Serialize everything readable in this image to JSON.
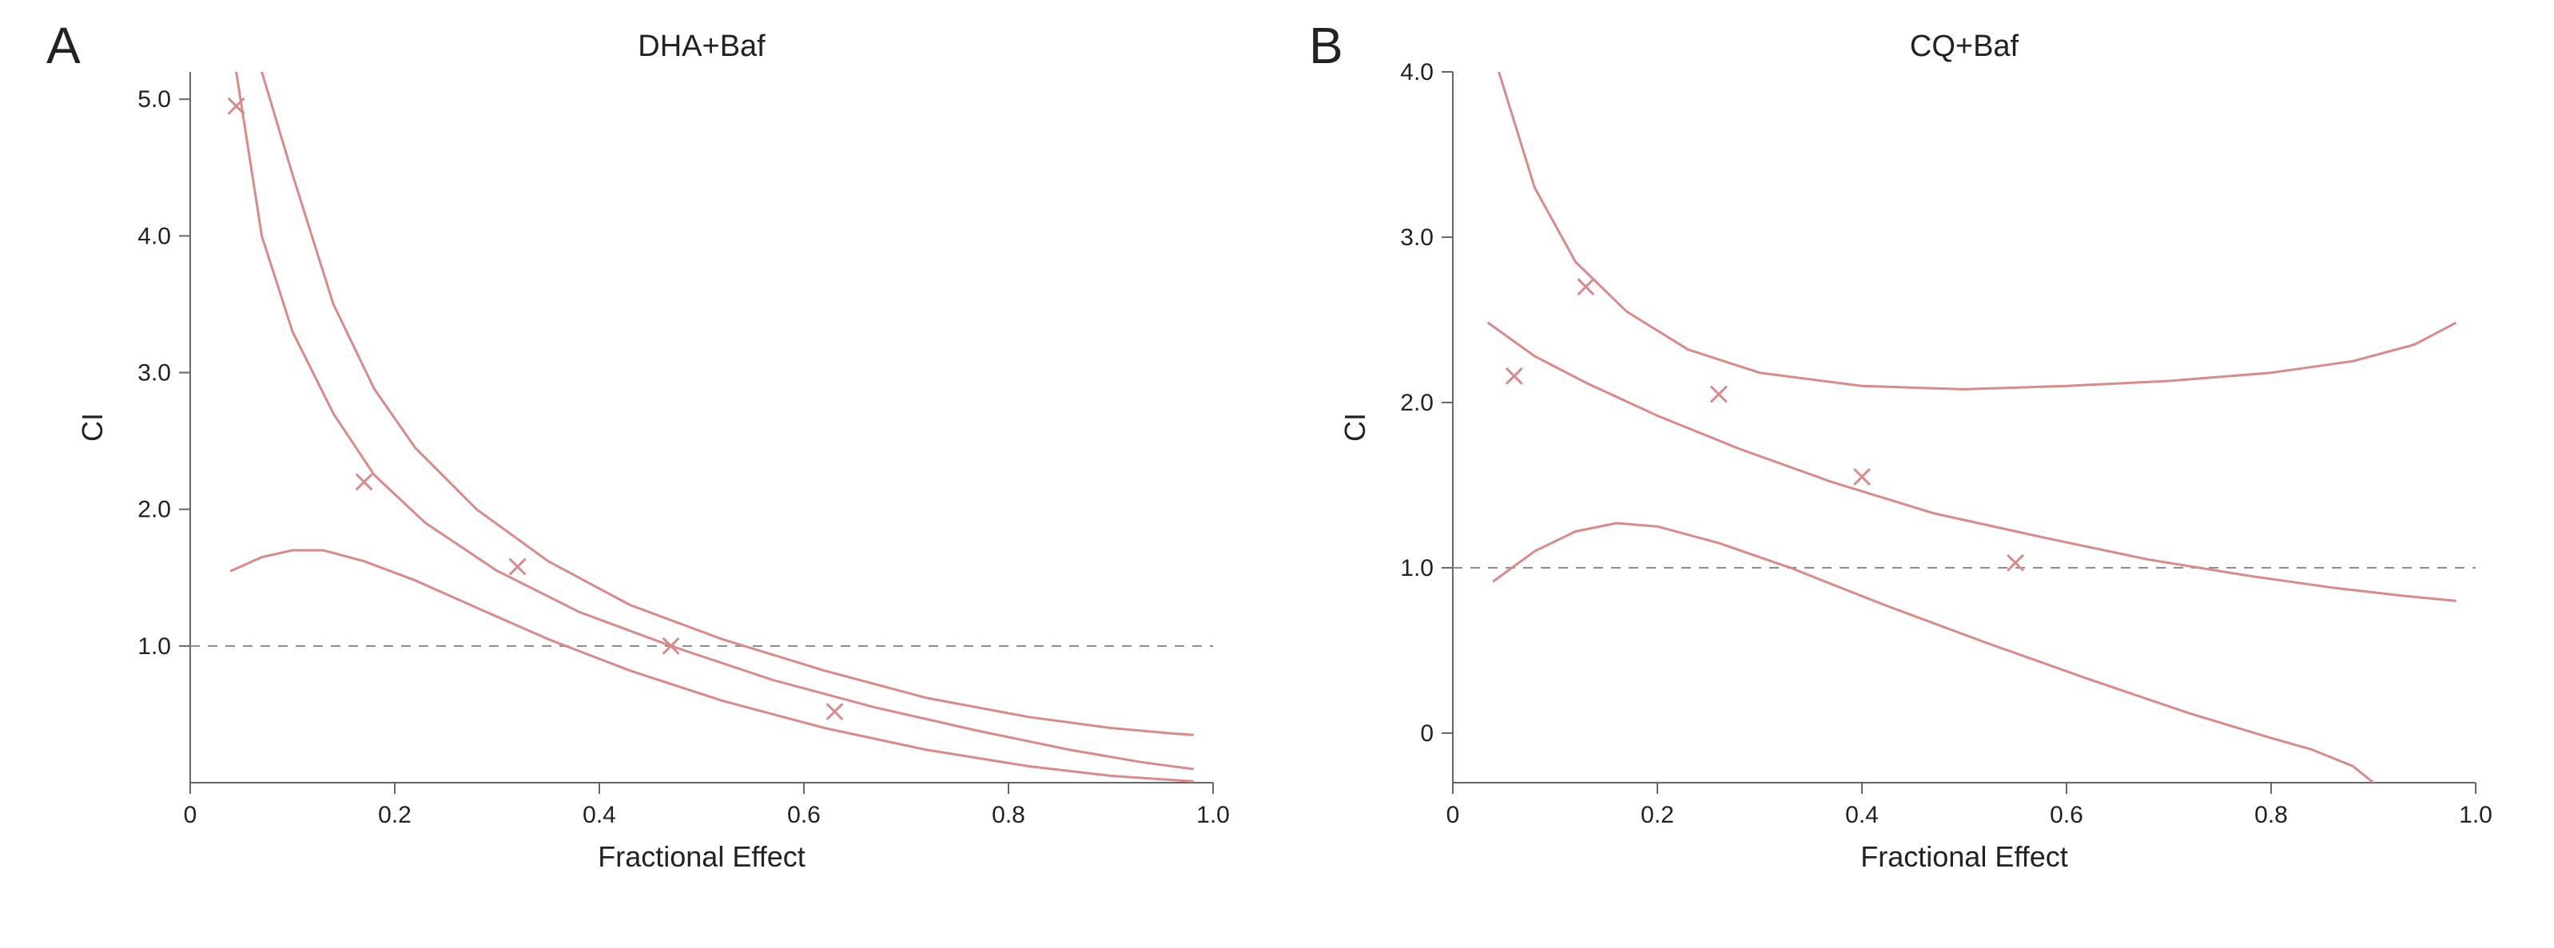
{
  "figure": {
    "layout": "two-panels-side-by-side",
    "aspect_per_panel": "1.35:1",
    "background_color": "#ffffff",
    "panel_letter_fontsize": 64,
    "panel_letter_color": "#222222",
    "title_fontsize": 38,
    "axis_label_fontsize": 36,
    "tick_label_fontsize": 30,
    "axis_color": "#666666",
    "tick_color": "#666666",
    "reference_line_color": "#888888",
    "reference_line_dash": "12,10",
    "curve_color": "#d98a8a",
    "curve_width": 3,
    "marker_style": "x",
    "marker_color": "#d98a8a",
    "marker_size": 18,
    "marker_stroke_width": 3
  },
  "panels": {
    "A": {
      "letter": "A",
      "title": "DHA+Baf",
      "xlabel": "Fractional Effect",
      "ylabel": "CI",
      "xlim": [
        0,
        1.0
      ],
      "ylim": [
        0,
        5.2
      ],
      "xticks": [
        0,
        0.2,
        0.4,
        0.6,
        0.8,
        1.0
      ],
      "yticks": [
        1.0,
        2.0,
        3.0,
        4.0,
        5.0
      ],
      "reference_y": 1.0,
      "points": [
        {
          "x": 0.045,
          "y": 4.95
        },
        {
          "x": 0.17,
          "y": 2.2
        },
        {
          "x": 0.32,
          "y": 1.58
        },
        {
          "x": 0.47,
          "y": 1.0
        },
        {
          "x": 0.63,
          "y": 0.52
        }
      ],
      "curves": {
        "upper": [
          {
            "x": 0.07,
            "y": 5.2
          },
          {
            "x": 0.1,
            "y": 4.45
          },
          {
            "x": 0.14,
            "y": 3.5
          },
          {
            "x": 0.18,
            "y": 2.88
          },
          {
            "x": 0.22,
            "y": 2.45
          },
          {
            "x": 0.28,
            "y": 2.0
          },
          {
            "x": 0.35,
            "y": 1.62
          },
          {
            "x": 0.43,
            "y": 1.3
          },
          {
            "x": 0.52,
            "y": 1.05
          },
          {
            "x": 0.62,
            "y": 0.82
          },
          {
            "x": 0.72,
            "y": 0.62
          },
          {
            "x": 0.82,
            "y": 0.48
          },
          {
            "x": 0.9,
            "y": 0.4
          },
          {
            "x": 0.96,
            "y": 0.36
          },
          {
            "x": 0.98,
            "y": 0.35
          }
        ],
        "middle": [
          {
            "x": 0.045,
            "y": 5.2
          },
          {
            "x": 0.07,
            "y": 4.0
          },
          {
            "x": 0.1,
            "y": 3.3
          },
          {
            "x": 0.14,
            "y": 2.7
          },
          {
            "x": 0.18,
            "y": 2.25
          },
          {
            "x": 0.23,
            "y": 1.9
          },
          {
            "x": 0.3,
            "y": 1.55
          },
          {
            "x": 0.38,
            "y": 1.25
          },
          {
            "x": 0.47,
            "y": 1.0
          },
          {
            "x": 0.57,
            "y": 0.75
          },
          {
            "x": 0.67,
            "y": 0.55
          },
          {
            "x": 0.77,
            "y": 0.38
          },
          {
            "x": 0.86,
            "y": 0.24
          },
          {
            "x": 0.93,
            "y": 0.15
          },
          {
            "x": 0.98,
            "y": 0.1
          }
        ],
        "lower": [
          {
            "x": 0.04,
            "y": 1.55
          },
          {
            "x": 0.07,
            "y": 1.65
          },
          {
            "x": 0.1,
            "y": 1.7
          },
          {
            "x": 0.13,
            "y": 1.7
          },
          {
            "x": 0.17,
            "y": 1.62
          },
          {
            "x": 0.22,
            "y": 1.48
          },
          {
            "x": 0.28,
            "y": 1.28
          },
          {
            "x": 0.35,
            "y": 1.05
          },
          {
            "x": 0.43,
            "y": 0.82
          },
          {
            "x": 0.52,
            "y": 0.6
          },
          {
            "x": 0.62,
            "y": 0.4
          },
          {
            "x": 0.72,
            "y": 0.24
          },
          {
            "x": 0.82,
            "y": 0.12
          },
          {
            "x": 0.9,
            "y": 0.05
          },
          {
            "x": 0.96,
            "y": 0.02
          },
          {
            "x": 0.98,
            "y": 0.01
          }
        ]
      }
    },
    "B": {
      "letter": "B",
      "title": "CQ+Baf",
      "xlabel": "Fractional Effect",
      "ylabel": "CI",
      "xlim": [
        0,
        1.0
      ],
      "ylim": [
        -0.3,
        4.0
      ],
      "xticks": [
        0,
        0.2,
        0.4,
        0.6,
        0.8,
        1.0
      ],
      "yticks": [
        0,
        1.0,
        2.0,
        3.0,
        4.0
      ],
      "reference_y": 1.0,
      "points": [
        {
          "x": 0.06,
          "y": 2.16
        },
        {
          "x": 0.13,
          "y": 2.7
        },
        {
          "x": 0.26,
          "y": 2.05
        },
        {
          "x": 0.4,
          "y": 1.55
        },
        {
          "x": 0.55,
          "y": 1.03
        }
      ],
      "curves": {
        "upper": [
          {
            "x": 0.045,
            "y": 4.0
          },
          {
            "x": 0.08,
            "y": 3.3
          },
          {
            "x": 0.12,
            "y": 2.85
          },
          {
            "x": 0.17,
            "y": 2.55
          },
          {
            "x": 0.23,
            "y": 2.32
          },
          {
            "x": 0.3,
            "y": 2.18
          },
          {
            "x": 0.4,
            "y": 2.1
          },
          {
            "x": 0.5,
            "y": 2.08
          },
          {
            "x": 0.6,
            "y": 2.1
          },
          {
            "x": 0.7,
            "y": 2.13
          },
          {
            "x": 0.8,
            "y": 2.18
          },
          {
            "x": 0.88,
            "y": 2.25
          },
          {
            "x": 0.94,
            "y": 2.35
          },
          {
            "x": 0.98,
            "y": 2.48
          }
        ],
        "middle": [
          {
            "x": 0.035,
            "y": 2.48
          },
          {
            "x": 0.08,
            "y": 2.28
          },
          {
            "x": 0.13,
            "y": 2.12
          },
          {
            "x": 0.2,
            "y": 1.92
          },
          {
            "x": 0.28,
            "y": 1.72
          },
          {
            "x": 0.37,
            "y": 1.52
          },
          {
            "x": 0.47,
            "y": 1.33
          },
          {
            "x": 0.58,
            "y": 1.18
          },
          {
            "x": 0.68,
            "y": 1.05
          },
          {
            "x": 0.78,
            "y": 0.95
          },
          {
            "x": 0.86,
            "y": 0.88
          },
          {
            "x": 0.93,
            "y": 0.83
          },
          {
            "x": 0.98,
            "y": 0.8
          }
        ],
        "lower": [
          {
            "x": 0.04,
            "y": 0.92
          },
          {
            "x": 0.08,
            "y": 1.1
          },
          {
            "x": 0.12,
            "y": 1.22
          },
          {
            "x": 0.16,
            "y": 1.27
          },
          {
            "x": 0.2,
            "y": 1.25
          },
          {
            "x": 0.26,
            "y": 1.15
          },
          {
            "x": 0.33,
            "y": 1.0
          },
          {
            "x": 0.42,
            "y": 0.78
          },
          {
            "x": 0.52,
            "y": 0.55
          },
          {
            "x": 0.62,
            "y": 0.33
          },
          {
            "x": 0.72,
            "y": 0.12
          },
          {
            "x": 0.8,
            "y": -0.03
          },
          {
            "x": 0.84,
            "y": -0.1
          },
          {
            "x": 0.88,
            "y": -0.2
          },
          {
            "x": 0.9,
            "y": -0.3
          }
        ]
      }
    }
  }
}
